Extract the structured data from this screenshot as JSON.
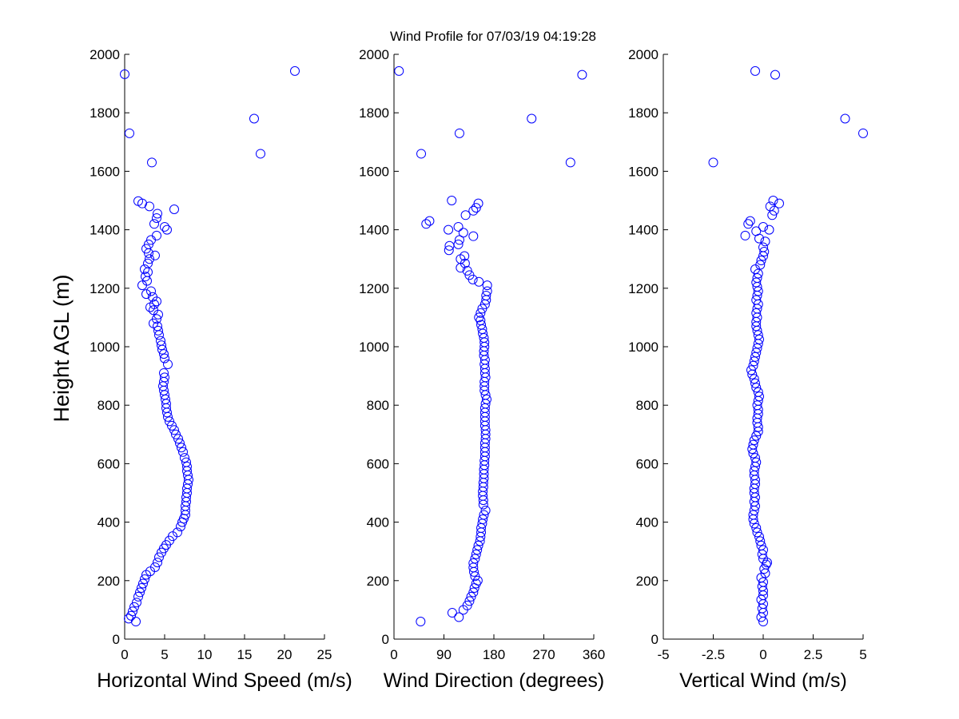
{
  "figure": {
    "title": "Wind Profile for  07/03/19 04:19:28",
    "ylabel": "Height AGL (m)"
  },
  "chart_data": [
    {
      "type": "scatter",
      "xlabel": "Horizontal Wind Speed (m/s)",
      "ylabel": "Height AGL (m)",
      "xlim": [
        0,
        25
      ],
      "ylim": [
        0,
        2000
      ],
      "xticks": [
        0,
        5,
        10,
        15,
        20,
        25
      ],
      "xtick_labels": [
        "0",
        "5",
        "10",
        "15",
        "20",
        "25"
      ],
      "yticks": [
        0,
        200,
        400,
        600,
        800,
        1000,
        1200,
        1400,
        1600,
        1800,
        2000
      ],
      "ytick_labels": [
        "0",
        "200",
        "400",
        "600",
        "800",
        "1000",
        "1200",
        "1400",
        "1600",
        "1800",
        "2000"
      ],
      "marker": "circle",
      "color": "#0000ff",
      "points": [
        [
          1.4,
          60
        ],
        [
          0.5,
          70
        ],
        [
          0.8,
          80
        ],
        [
          1.0,
          95
        ],
        [
          1.2,
          110
        ],
        [
          1.5,
          125
        ],
        [
          1.7,
          145
        ],
        [
          1.9,
          160
        ],
        [
          2.1,
          175
        ],
        [
          2.3,
          190
        ],
        [
          2.5,
          205
        ],
        [
          2.7,
          220
        ],
        [
          3.2,
          232
        ],
        [
          3.8,
          246
        ],
        [
          4.1,
          262
        ],
        [
          4.3,
          280
        ],
        [
          4.6,
          296
        ],
        [
          4.9,
          310
        ],
        [
          5.2,
          322
        ],
        [
          5.6,
          337
        ],
        [
          6.0,
          352
        ],
        [
          6.6,
          365
        ],
        [
          7.0,
          385
        ],
        [
          7.2,
          400
        ],
        [
          7.4,
          412
        ],
        [
          7.6,
          425
        ],
        [
          7.6,
          440
        ],
        [
          7.6,
          455
        ],
        [
          7.7,
          470
        ],
        [
          7.7,
          485
        ],
        [
          7.8,
          500
        ],
        [
          7.8,
          515
        ],
        [
          7.9,
          530
        ],
        [
          8.0,
          545
        ],
        [
          7.9,
          560
        ],
        [
          7.8,
          575
        ],
        [
          7.8,
          590
        ],
        [
          7.7,
          605
        ],
        [
          7.5,
          620
        ],
        [
          7.3,
          640
        ],
        [
          7.1,
          655
        ],
        [
          6.9,
          670
        ],
        [
          6.7,
          685
        ],
        [
          6.4,
          700
        ],
        [
          6.2,
          715
        ],
        [
          5.9,
          730
        ],
        [
          5.6,
          745
        ],
        [
          5.4,
          760
        ],
        [
          5.3,
          775
        ],
        [
          5.2,
          790
        ],
        [
          5.2,
          805
        ],
        [
          5.1,
          820
        ],
        [
          5.0,
          835
        ],
        [
          4.9,
          850
        ],
        [
          4.8,
          865
        ],
        [
          4.9,
          880
        ],
        [
          5.0,
          895
        ],
        [
          4.9,
          910
        ],
        [
          5.4,
          940
        ],
        [
          5.0,
          960
        ],
        [
          4.9,
          975
        ],
        [
          4.7,
          990
        ],
        [
          4.6,
          1005
        ],
        [
          4.5,
          1020
        ],
        [
          4.3,
          1040
        ],
        [
          4.2,
          1055
        ],
        [
          4.1,
          1070
        ],
        [
          3.6,
          1080
        ],
        [
          4.0,
          1095
        ],
        [
          4.2,
          1110
        ],
        [
          3.6,
          1125
        ],
        [
          3.2,
          1135
        ],
        [
          3.7,
          1145
        ],
        [
          4.0,
          1155
        ],
        [
          3.5,
          1170
        ],
        [
          2.7,
          1180
        ],
        [
          3.3,
          1190
        ],
        [
          2.2,
          1210
        ],
        [
          2.8,
          1225
        ],
        [
          2.6,
          1240
        ],
        [
          2.9,
          1255
        ],
        [
          2.5,
          1265
        ],
        [
          2.9,
          1285
        ],
        [
          3.1,
          1300
        ],
        [
          3.8,
          1312
        ],
        [
          3.0,
          1320
        ],
        [
          2.7,
          1335
        ],
        [
          3.0,
          1350
        ],
        [
          3.3,
          1365
        ],
        [
          4.0,
          1380
        ],
        [
          5.3,
          1400
        ],
        [
          5.0,
          1410
        ],
        [
          3.7,
          1420
        ],
        [
          4.0,
          1440
        ],
        [
          4.1,
          1455
        ],
        [
          6.2,
          1470
        ],
        [
          3.1,
          1480
        ],
        [
          2.2,
          1490
        ],
        [
          1.7,
          1498
        ],
        [
          3.4,
          1630
        ],
        [
          17.0,
          1660
        ],
        [
          0.6,
          1730
        ],
        [
          16.2,
          1780
        ],
        [
          0.0,
          1932
        ],
        [
          21.3,
          1943
        ]
      ]
    },
    {
      "type": "scatter",
      "xlabel": "Wind Direction (degrees)",
      "xlim": [
        0,
        360
      ],
      "ylim": [
        0,
        2000
      ],
      "xticks": [
        0,
        90,
        180,
        270,
        360
      ],
      "xtick_labels": [
        "0",
        "90",
        "180",
        "270",
        "360"
      ],
      "yticks": [
        0,
        200,
        400,
        600,
        800,
        1000,
        1200,
        1400,
        1600,
        1800,
        2000
      ],
      "ytick_labels": [
        "0",
        "200",
        "400",
        "600",
        "800",
        "1000",
        "1200",
        "1400",
        "1600",
        "1800",
        "2000"
      ],
      "marker": "circle",
      "color": "#0000ff",
      "points": [
        [
          48,
          60
        ],
        [
          117,
          75
        ],
        [
          105,
          90
        ],
        [
          125,
          100
        ],
        [
          132,
          115
        ],
        [
          136,
          130
        ],
        [
          139,
          145
        ],
        [
          143,
          160
        ],
        [
          145,
          175
        ],
        [
          148,
          190
        ],
        [
          151,
          200
        ],
        [
          146,
          215
        ],
        [
          144,
          230
        ],
        [
          143,
          245
        ],
        [
          143,
          260
        ],
        [
          146,
          275
        ],
        [
          148,
          290
        ],
        [
          150,
          305
        ],
        [
          152,
          320
        ],
        [
          155,
          335
        ],
        [
          156,
          350
        ],
        [
          157,
          365
        ],
        [
          157,
          380
        ],
        [
          159,
          395
        ],
        [
          160,
          410
        ],
        [
          162,
          425
        ],
        [
          165,
          440
        ],
        [
          161,
          460
        ],
        [
          161,
          475
        ],
        [
          160,
          490
        ],
        [
          160,
          505
        ],
        [
          161,
          520
        ],
        [
          161,
          535
        ],
        [
          162,
          550
        ],
        [
          162,
          565
        ],
        [
          162,
          580
        ],
        [
          163,
          595
        ],
        [
          163,
          610
        ],
        [
          164,
          625
        ],
        [
          164,
          640
        ],
        [
          164,
          655
        ],
        [
          164,
          670
        ],
        [
          165,
          685
        ],
        [
          165,
          700
        ],
        [
          165,
          715
        ],
        [
          164,
          730
        ],
        [
          164,
          745
        ],
        [
          164,
          760
        ],
        [
          164,
          775
        ],
        [
          164,
          790
        ],
        [
          165,
          805
        ],
        [
          167,
          820
        ],
        [
          165,
          835
        ],
        [
          163,
          850
        ],
        [
          163,
          865
        ],
        [
          163,
          880
        ],
        [
          165,
          895
        ],
        [
          164,
          910
        ],
        [
          164,
          925
        ],
        [
          163,
          940
        ],
        [
          164,
          955
        ],
        [
          162,
          970
        ],
        [
          162,
          985
        ],
        [
          163,
          1000
        ],
        [
          163,
          1015
        ],
        [
          162,
          1030
        ],
        [
          160,
          1045
        ],
        [
          159,
          1060
        ],
        [
          157,
          1075
        ],
        [
          156,
          1090
        ],
        [
          153,
          1100
        ],
        [
          156,
          1115
        ],
        [
          159,
          1130
        ],
        [
          164,
          1145
        ],
        [
          166,
          1160
        ],
        [
          166,
          1175
        ],
        [
          168,
          1190
        ],
        [
          168,
          1210
        ],
        [
          153,
          1222
        ],
        [
          142,
          1230
        ],
        [
          136,
          1245
        ],
        [
          132,
          1260
        ],
        [
          120,
          1270
        ],
        [
          128,
          1285
        ],
        [
          120,
          1300
        ],
        [
          127,
          1310
        ],
        [
          99,
          1330
        ],
        [
          100,
          1345
        ],
        [
          116,
          1350
        ],
        [
          118,
          1365
        ],
        [
          143,
          1378
        ],
        [
          125,
          1390
        ],
        [
          98,
          1400
        ],
        [
          116,
          1410
        ],
        [
          58,
          1420
        ],
        [
          64,
          1430
        ],
        [
          129,
          1450
        ],
        [
          143,
          1465
        ],
        [
          148,
          1475
        ],
        [
          152,
          1490
        ],
        [
          104,
          1500
        ],
        [
          49,
          1660
        ],
        [
          118,
          1730
        ],
        [
          248,
          1780
        ],
        [
          318,
          1630
        ],
        [
          9,
          1943
        ],
        [
          339,
          1930
        ]
      ]
    },
    {
      "type": "scatter",
      "xlabel": "Vertical Wind (m/s)",
      "xlim": [
        -5,
        5
      ],
      "ylim": [
        0,
        2000
      ],
      "xticks": [
        -5,
        -2.5,
        0,
        2.5,
        5
      ],
      "xtick_labels": [
        "-5",
        "-2.5",
        "0",
        "2.5",
        "5"
      ],
      "yticks": [
        0,
        200,
        400,
        600,
        800,
        1000,
        1200,
        1400,
        1600,
        1800,
        2000
      ],
      "ytick_labels": [
        "0",
        "200",
        "400",
        "600",
        "800",
        "1000",
        "1200",
        "1400",
        "1600",
        "1800",
        "2000"
      ],
      "marker": "circle",
      "color": "#0000ff",
      "points": [
        [
          0.0,
          60
        ],
        [
          -0.1,
          75
        ],
        [
          0.0,
          90
        ],
        [
          -0.05,
          105
        ],
        [
          0.0,
          120
        ],
        [
          -0.1,
          135
        ],
        [
          0.0,
          150
        ],
        [
          0.0,
          165
        ],
        [
          -0.05,
          180
        ],
        [
          0.0,
          195
        ],
        [
          -0.1,
          210
        ],
        [
          0.1,
          225
        ],
        [
          0.05,
          240
        ],
        [
          0.15,
          255
        ],
        [
          0.2,
          262
        ],
        [
          0.0,
          275
        ],
        [
          -0.05,
          290
        ],
        [
          0.0,
          305
        ],
        [
          -0.1,
          320
        ],
        [
          -0.15,
          335
        ],
        [
          -0.2,
          350
        ],
        [
          -0.3,
          365
        ],
        [
          -0.35,
          380
        ],
        [
          -0.45,
          395
        ],
        [
          -0.5,
          410
        ],
        [
          -0.5,
          425
        ],
        [
          -0.45,
          440
        ],
        [
          -0.4,
          455
        ],
        [
          -0.45,
          470
        ],
        [
          -0.4,
          485
        ],
        [
          -0.45,
          500
        ],
        [
          -0.45,
          515
        ],
        [
          -0.4,
          530
        ],
        [
          -0.4,
          545
        ],
        [
          -0.45,
          560
        ],
        [
          -0.45,
          575
        ],
        [
          -0.4,
          590
        ],
        [
          -0.35,
          605
        ],
        [
          -0.4,
          620
        ],
        [
          -0.5,
          635
        ],
        [
          -0.55,
          650
        ],
        [
          -0.5,
          665
        ],
        [
          -0.45,
          680
        ],
        [
          -0.35,
          695
        ],
        [
          -0.25,
          710
        ],
        [
          -0.25,
          725
        ],
        [
          -0.3,
          740
        ],
        [
          -0.3,
          755
        ],
        [
          -0.25,
          770
        ],
        [
          -0.25,
          785
        ],
        [
          -0.3,
          800
        ],
        [
          -0.25,
          815
        ],
        [
          -0.2,
          830
        ],
        [
          -0.25,
          845
        ],
        [
          -0.35,
          860
        ],
        [
          -0.4,
          875
        ],
        [
          -0.45,
          890
        ],
        [
          -0.55,
          905
        ],
        [
          -0.6,
          920
        ],
        [
          -0.5,
          935
        ],
        [
          -0.45,
          950
        ],
        [
          -0.4,
          965
        ],
        [
          -0.35,
          980
        ],
        [
          -0.3,
          995
        ],
        [
          -0.25,
          1010
        ],
        [
          -0.2,
          1025
        ],
        [
          -0.25,
          1040
        ],
        [
          -0.3,
          1055
        ],
        [
          -0.35,
          1070
        ],
        [
          -0.35,
          1085
        ],
        [
          -0.3,
          1100
        ],
        [
          -0.35,
          1115
        ],
        [
          -0.3,
          1130
        ],
        [
          -0.25,
          1145
        ],
        [
          -0.35,
          1160
        ],
        [
          -0.3,
          1175
        ],
        [
          -0.25,
          1190
        ],
        [
          -0.3,
          1205
        ],
        [
          -0.35,
          1220
        ],
        [
          -0.3,
          1235
        ],
        [
          -0.25,
          1250
        ],
        [
          -0.4,
          1265
        ],
        [
          -0.15,
          1280
        ],
        [
          -0.1,
          1295
        ],
        [
          0.0,
          1310
        ],
        [
          0.05,
          1325
        ],
        [
          0.0,
          1340
        ],
        [
          0.1,
          1360
        ],
        [
          -0.2,
          1370
        ],
        [
          -0.9,
          1380
        ],
        [
          -0.35,
          1395
        ],
        [
          0.3,
          1400
        ],
        [
          0.0,
          1410
        ],
        [
          -0.75,
          1420
        ],
        [
          -0.65,
          1430
        ],
        [
          0.45,
          1450
        ],
        [
          0.55,
          1465
        ],
        [
          0.35,
          1480
        ],
        [
          0.8,
          1490
        ],
        [
          0.5,
          1500
        ],
        [
          -2.5,
          1630
        ],
        [
          5.0,
          1730
        ],
        [
          4.1,
          1780
        ],
        [
          -0.4,
          1943
        ],
        [
          0.6,
          1930
        ]
      ]
    }
  ]
}
